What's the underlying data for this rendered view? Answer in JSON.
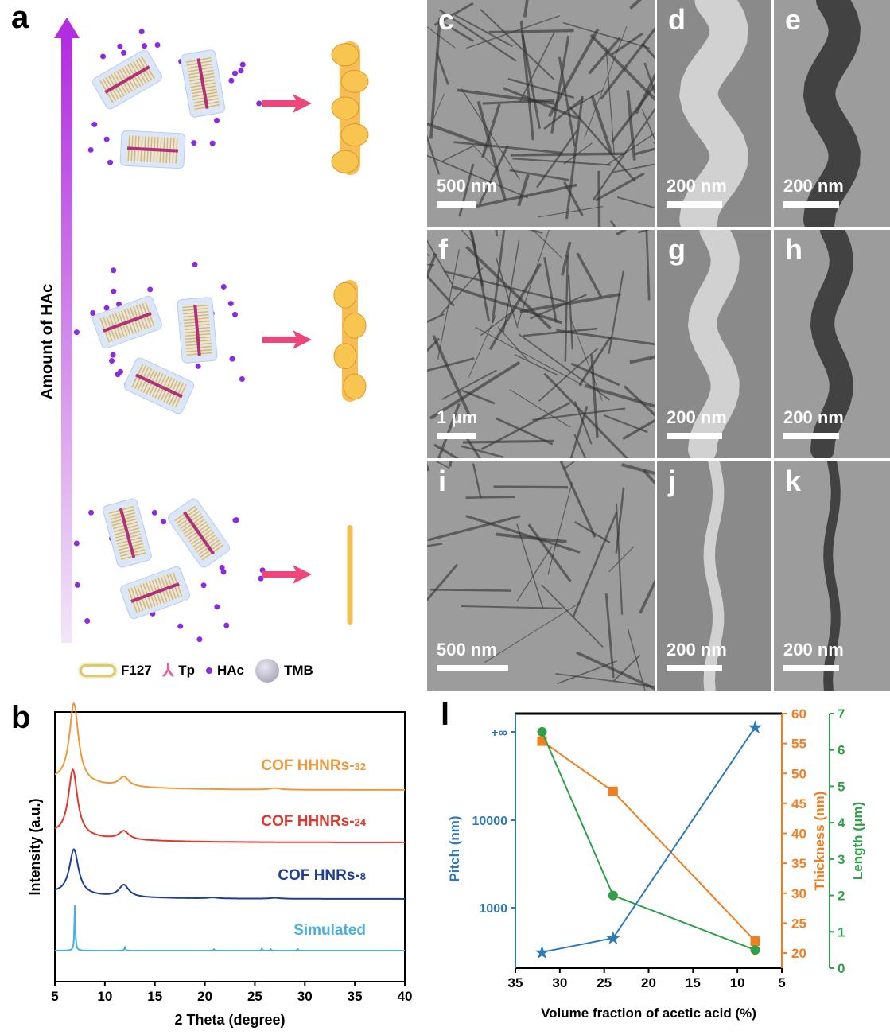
{
  "panel_a": {
    "label": "a",
    "axis_label": "Amount of HAc",
    "legend": [
      "F127",
      "Tp",
      "HAc",
      "TMB"
    ],
    "colors": {
      "arrow": "#b22de0",
      "hac": "#8a2be2",
      "pink_arrow": "#f0457a",
      "helix": "#f4b23a"
    }
  },
  "micrographs": [
    {
      "label": "c",
      "scale": "500 nm"
    },
    {
      "label": "d",
      "scale": "200 nm"
    },
    {
      "label": "e",
      "scale": "200 nm"
    },
    {
      "label": "f",
      "scale": "1 μm"
    },
    {
      "label": "g",
      "scale": "200 nm"
    },
    {
      "label": "h",
      "scale": "200 nm"
    },
    {
      "label": "i",
      "scale": "500 nm"
    },
    {
      "label": "j",
      "scale": "200 nm"
    },
    {
      "label": "k",
      "scale": "200 nm"
    }
  ],
  "chart_data": [
    {
      "panel": "b",
      "type": "line",
      "xlabel": "2 Theta (degree)",
      "ylabel": "Intensity (a.u.)",
      "xlim": [
        5,
        40
      ],
      "xticks": [
        5,
        10,
        15,
        20,
        25,
        30,
        35,
        40
      ],
      "grid": false,
      "series": [
        {
          "name": "COF HHNRs-32",
          "name_main": "COF HHNRs-",
          "name_sub": "32",
          "color": "#f0993a",
          "peaks": [
            [
              6.9,
              1.0
            ],
            [
              11.9,
              0.12
            ],
            [
              27,
              0.02
            ]
          ]
        },
        {
          "name": "COF HHNRs-24",
          "name_main": "COF HHNRs-",
          "name_sub": "24",
          "color": "#e03a2e",
          "peaks": [
            [
              6.8,
              0.95
            ],
            [
              11.9,
              0.12
            ]
          ]
        },
        {
          "name": "COF HNRs-8",
          "name_main": "COF  HNRs-",
          "name_sub": "8",
          "color": "#1f3f8f",
          "peaks": [
            [
              6.9,
              0.95
            ],
            [
              11.9,
              0.25
            ],
            [
              20.8,
              0.02
            ],
            [
              27,
              0.02
            ]
          ]
        },
        {
          "name": "Simulated",
          "name_main": "Simulated",
          "name_sub": "",
          "color": "#4aaee0",
          "peaks": [
            [
              7.0,
              1.0
            ],
            [
              12.0,
              0.07
            ],
            [
              20.9,
              0.03
            ],
            [
              25.7,
              0.04
            ],
            [
              26.6,
              0.03
            ],
            [
              29.3,
              0.03
            ]
          ]
        }
      ]
    },
    {
      "panel": "l",
      "type": "line",
      "xlabel": "Volume fraction of acetic acid (%)",
      "xlim": [
        35,
        5
      ],
      "xticks": [
        35,
        30,
        25,
        20,
        15,
        10,
        5
      ],
      "x": [
        32,
        24,
        8
      ],
      "series": [
        {
          "name": "Pitch (nm)",
          "axis": "left",
          "scale": "log",
          "ticks": [
            "1000",
            "10000",
            "+∞"
          ],
          "values": [
            310,
            450,
            "+∞"
          ],
          "color": "#2e7ab8",
          "marker": "star"
        },
        {
          "name": "Thickness (nm)",
          "axis": "right",
          "ylim": [
            20,
            60
          ],
          "ticks": [
            20,
            25,
            30,
            35,
            40,
            45,
            50,
            55,
            60
          ],
          "values": [
            55.4,
            47,
            22
          ],
          "color": "#f07f22",
          "marker": "square"
        },
        {
          "name": "Length (μm)",
          "axis": "right2",
          "ylim": [
            0,
            7
          ],
          "ticks": [
            0,
            1,
            2,
            3,
            4,
            5,
            6,
            7
          ],
          "values": [
            6.5,
            2.0,
            0.5
          ],
          "color": "#2fa048",
          "marker": "circle"
        }
      ]
    }
  ]
}
